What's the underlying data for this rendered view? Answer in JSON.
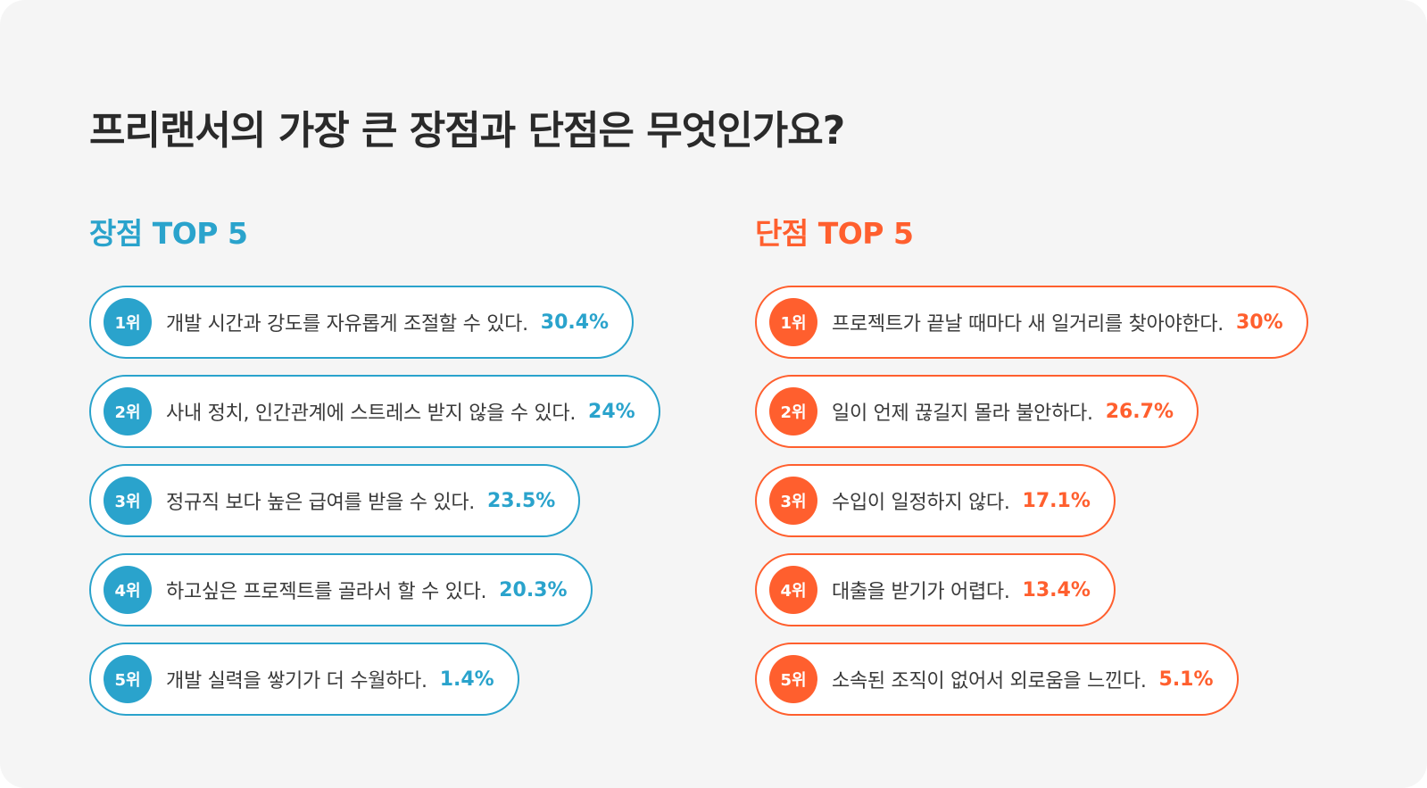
{
  "title": "프리랜서의 가장 큰 장점과 단점은 무엇인가요?",
  "colors": {
    "background": "#f5f5f5",
    "pros_accent": "#2aa3cc",
    "cons_accent": "#ff5f2e"
  },
  "pros": {
    "heading": "장점 TOP 5",
    "items": [
      {
        "rank": "1위",
        "text": "개발 시간과 강도를 자유롭게 조절할 수 있다.",
        "percent": "30.4%"
      },
      {
        "rank": "2위",
        "text": "사내 정치, 인간관계에 스트레스 받지 않을 수 있다.",
        "percent": "24%"
      },
      {
        "rank": "3위",
        "text": "정규직 보다 높은 급여를 받을 수 있다.",
        "percent": "23.5%"
      },
      {
        "rank": "4위",
        "text": "하고싶은 프로젝트를 골라서 할 수 있다.",
        "percent": "20.3%"
      },
      {
        "rank": "5위",
        "text": "개발 실력을 쌓기가 더 수월하다.",
        "percent": "1.4%"
      }
    ]
  },
  "cons": {
    "heading": "단점 TOP 5",
    "items": [
      {
        "rank": "1위",
        "text": "프로젝트가 끝날 때마다 새 일거리를 찾아야한다.",
        "percent": "30%"
      },
      {
        "rank": "2위",
        "text": "일이 언제 끊길지 몰라 불안하다.",
        "percent": "26.7%"
      },
      {
        "rank": "3위",
        "text": "수입이 일정하지 않다.",
        "percent": "17.1%"
      },
      {
        "rank": "4위",
        "text": "대출을 받기가 어렵다.",
        "percent": "13.4%"
      },
      {
        "rank": "5위",
        "text": "소속된 조직이 없어서 외로움을 느낀다.",
        "percent": "5.1%"
      }
    ]
  }
}
